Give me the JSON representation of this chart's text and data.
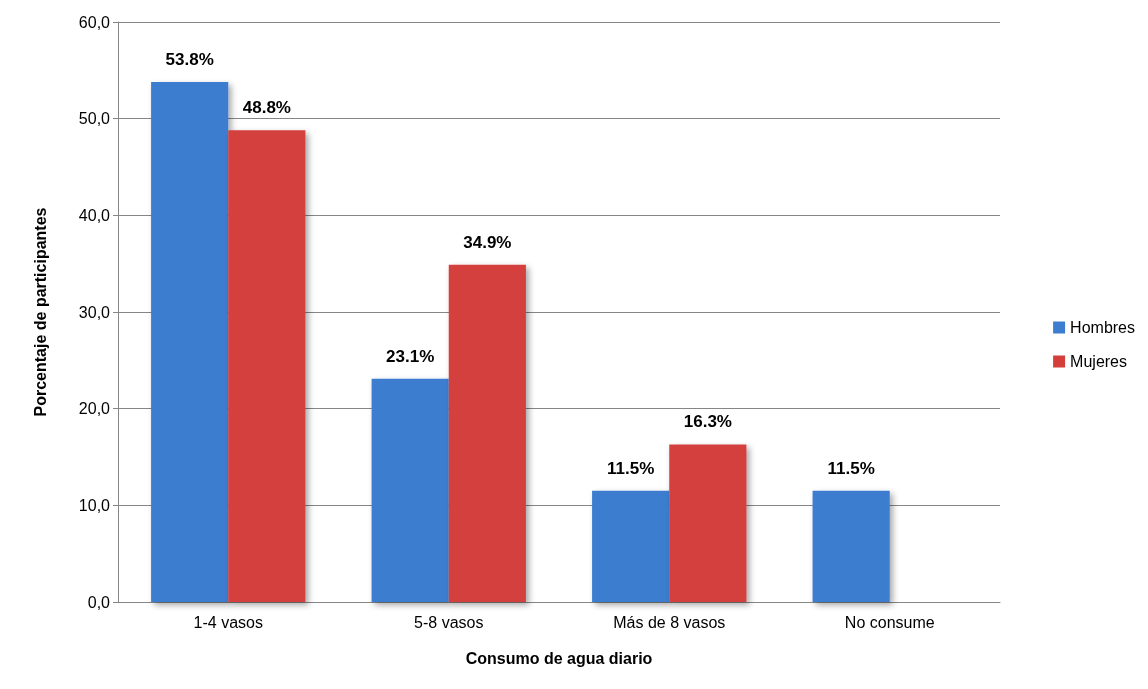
{
  "chart_data": {
    "type": "bar",
    "xlabel": "Consumo de agua diario",
    "ylabel": "Porcentaje de participantes",
    "categories": [
      "1-4 vasos",
      "5-8 vasos",
      "Más de 8 vasos",
      "No consume"
    ],
    "series": [
      {
        "name": "Hombres",
        "color": "#3c7dd0",
        "values": [
          53.8,
          23.1,
          11.5,
          11.5
        ],
        "value_labels": [
          "53.8%",
          "23.1%",
          "11.5%",
          "11.5%"
        ]
      },
      {
        "name": "Mujeres",
        "color": "#d43f3c",
        "values": [
          48.8,
          34.9,
          16.3,
          null
        ],
        "value_labels": [
          "48.8%",
          "34.9%",
          "16.3%",
          null
        ]
      }
    ],
    "ylim": [
      0,
      60
    ],
    "yticks": [
      {
        "value": 0,
        "label": "0,0"
      },
      {
        "value": 10,
        "label": "10,0"
      },
      {
        "value": 20,
        "label": "20,0"
      },
      {
        "value": 30,
        "label": "30,0"
      },
      {
        "value": 40,
        "label": "40,0"
      },
      {
        "value": 50,
        "label": "50,0"
      },
      {
        "value": 60,
        "label": "60,0"
      }
    ],
    "grid": "y",
    "legend": "right"
  }
}
